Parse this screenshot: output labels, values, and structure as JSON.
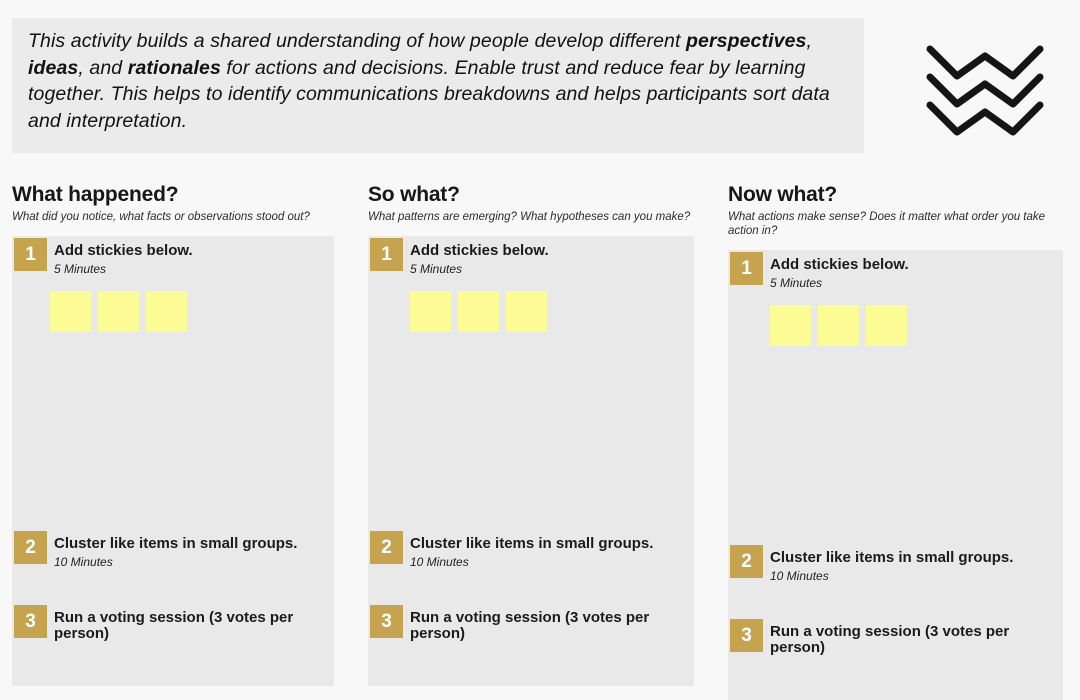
{
  "intro": {
    "segments": [
      {
        "text": "This activity builds a shared understanding of how people develop different ",
        "bold": false
      },
      {
        "text": "perspectives",
        "bold": true
      },
      {
        "text": ", ",
        "bold": false
      },
      {
        "text": "ideas",
        "bold": true
      },
      {
        "text": ", and ",
        "bold": false
      },
      {
        "text": "rationales",
        "bold": true
      },
      {
        "text": " for actions and decisions. Enable trust and reduce fear by learning together. This helps to identify communications breakdowns and helps participants sort data and interpretation.",
        "bold": false
      }
    ]
  },
  "logo": {
    "icon": "triple-zigzag-logo",
    "color": "#151515"
  },
  "colors": {
    "page_background": "#F8F8F8",
    "intro_background": "#EBEBEB",
    "panel_background": "#E9E9E9",
    "badge_gold": "#C6A44F",
    "sticky_yellow": "#FCFC97"
  },
  "columns": [
    {
      "title": "What happened?",
      "subtitle": "What did you notice, what facts or observations stood out?",
      "steps": [
        {
          "num": "1",
          "title": "Add stickies below.",
          "duration": "5 Minutes"
        },
        {
          "num": "2",
          "title": "Cluster like items in small groups.",
          "duration": "10 Minutes"
        },
        {
          "num": "3",
          "title": "Run a voting session (3 votes per person)"
        }
      ],
      "sticky_count": 3
    },
    {
      "title": "So what?",
      "subtitle": "What patterns are emerging? What hypotheses can you make?",
      "steps": [
        {
          "num": "1",
          "title": "Add stickies below.",
          "duration": "5 Minutes"
        },
        {
          "num": "2",
          "title": "Cluster like items in small groups.",
          "duration": "10 Minutes"
        },
        {
          "num": "3",
          "title": "Run a voting session (3 votes per person)"
        }
      ],
      "sticky_count": 3
    },
    {
      "title": "Now what?",
      "subtitle": "What actions make sense? Does it matter what order you take action in?",
      "steps": [
        {
          "num": "1",
          "title": "Add stickies below.",
          "duration": "5 Minutes"
        },
        {
          "num": "2",
          "title": "Cluster like items in small groups.",
          "duration": "10 Minutes"
        },
        {
          "num": "3",
          "title": "Run a voting session (3 votes per person)"
        }
      ],
      "sticky_count": 3
    }
  ]
}
